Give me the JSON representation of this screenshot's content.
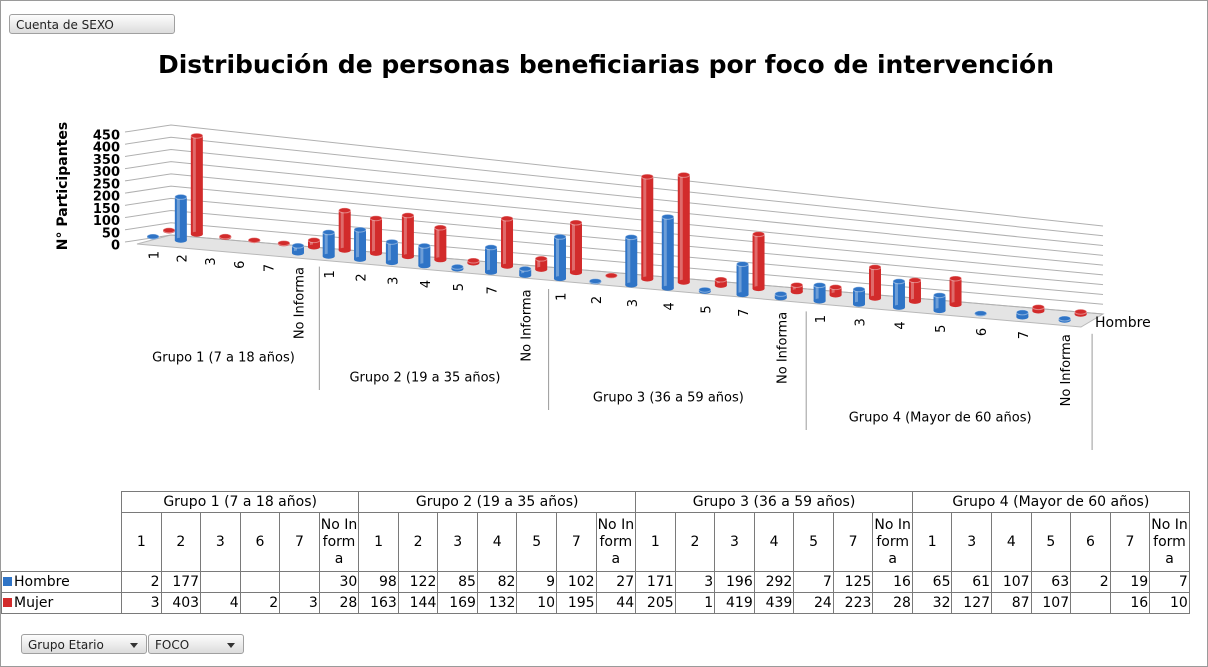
{
  "buttons": {
    "field": "Cuenta de SEXO",
    "filters": [
      "Grupo Etario",
      "FOCO"
    ]
  },
  "chart_data": {
    "type": "bar",
    "title": "Distribución de personas beneficiarias por foco de intervención",
    "y_label": "N° Participantes",
    "ylim": [
      0,
      450
    ],
    "yticks": [
      0,
      50,
      100,
      150,
      200,
      250,
      300,
      350,
      400,
      450
    ],
    "grid": true,
    "groups": [
      {
        "name": "Grupo 1 (7 a 18 años)",
        "categories": [
          "1",
          "2",
          "3",
          "6",
          "7",
          "No Informa"
        ]
      },
      {
        "name": "Grupo 2 (19 a 35 años)",
        "categories": [
          "1",
          "2",
          "3",
          "4",
          "5",
          "7",
          "No Informa"
        ]
      },
      {
        "name": "Grupo 3 (36 a 59 años)",
        "categories": [
          "1",
          "2",
          "3",
          "4",
          "5",
          "7",
          "No Informa"
        ]
      },
      {
        "name": "Grupo 4 (Mayor de 60 años)",
        "categories": [
          "1",
          "3",
          "4",
          "5",
          "6",
          "7",
          "No Informa"
        ]
      }
    ],
    "series": [
      {
        "name": "Hombre",
        "color": "#2f74c6",
        "values": [
          2,
          177,
          null,
          null,
          null,
          30,
          98,
          122,
          85,
          82,
          9,
          102,
          27,
          171,
          3,
          196,
          292,
          7,
          125,
          16,
          65,
          61,
          107,
          63,
          2,
          19,
          7
        ]
      },
      {
        "name": "Mujer",
        "color": "#d22b2b",
        "values": [
          3,
          403,
          4,
          2,
          3,
          28,
          163,
          144,
          169,
          132,
          10,
          195,
          44,
          205,
          1,
          419,
          439,
          24,
          223,
          28,
          32,
          127,
          87,
          107,
          null,
          16,
          10
        ]
      }
    ]
  }
}
